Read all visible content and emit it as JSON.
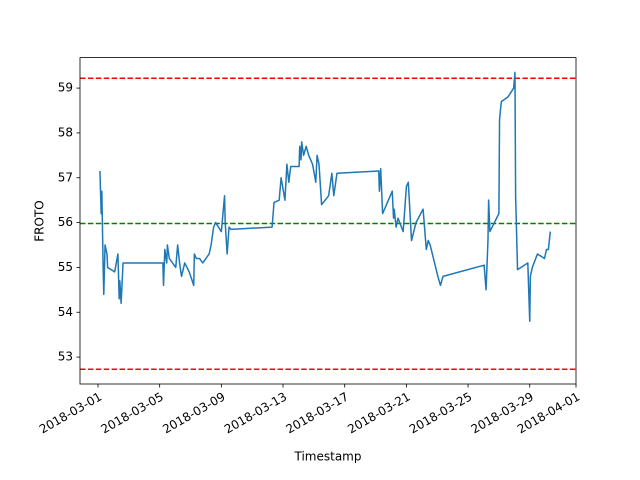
{
  "chart_data": {
    "type": "line",
    "x_label": "Timestamp",
    "y_label": "FROTO",
    "x": [
      "2018-03-01 03:00",
      "2018-03-01 05:00",
      "2018-03-01 06:00",
      "2018-03-01 08:00",
      "2018-03-01 09:00",
      "2018-03-01 11:00",
      "2018-03-01 14:00",
      "2018-03-01 15:00",
      "2018-03-02 02:00",
      "2018-03-02 07:00",
      "2018-03-02 09:00",
      "2018-03-02 10:00",
      "2018-03-02 12:00",
      "2018-03-02 15:00",
      "2018-03-05 05:00",
      "2018-03-05 06:00",
      "2018-03-05 08:00",
      "2018-03-05 11:00",
      "2018-03-05 12:00",
      "2018-03-05 15:00",
      "2018-03-06 01:00",
      "2018-03-06 04:00",
      "2018-03-06 07:00",
      "2018-03-06 10:00",
      "2018-03-06 15:00",
      "2018-03-06 22:00",
      "2018-03-07 05:00",
      "2018-03-07 06:00",
      "2018-03-07 09:00",
      "2018-03-07 14:00",
      "2018-03-07 19:00",
      "2018-03-08 05:00",
      "2018-03-08 08:00",
      "2018-03-08 12:00",
      "2018-03-08 15:00",
      "2018-03-09 00:00",
      "2018-03-09 05:00",
      "2018-03-09 06:00",
      "2018-03-09 09:00",
      "2018-03-09 12:00",
      "2018-03-09 15:00",
      "2018-03-12 07:00",
      "2018-03-12 10:00",
      "2018-03-12 18:00",
      "2018-03-12 21:00",
      "2018-03-13 03:00",
      "2018-03-13 06:00",
      "2018-03-13 09:00",
      "2018-03-13 12:00",
      "2018-03-14 01:00",
      "2018-03-14 02:00",
      "2018-03-14 04:00",
      "2018-03-14 05:00",
      "2018-03-14 08:00",
      "2018-03-14 12:00",
      "2018-03-14 16:00",
      "2018-03-14 22:00",
      "2018-03-15 03:00",
      "2018-03-15 05:00",
      "2018-03-15 08:00",
      "2018-03-15 12:00",
      "2018-03-15 23:00",
      "2018-03-16 04:00",
      "2018-03-16 07:00",
      "2018-03-16 12:00",
      "2018-03-19 05:00",
      "2018-03-19 06:00",
      "2018-03-19 08:00",
      "2018-03-19 11:00",
      "2018-03-19 20:00",
      "2018-03-20 02:00",
      "2018-03-20 04:00",
      "2018-03-20 05:00",
      "2018-03-20 08:00",
      "2018-03-20 11:00",
      "2018-03-20 19:00",
      "2018-03-21 00:00",
      "2018-03-21 03:00",
      "2018-03-21 08:00",
      "2018-03-21 15:00",
      "2018-03-22 02:00",
      "2018-03-22 07:00",
      "2018-03-22 10:00",
      "2018-03-22 13:00",
      "2018-03-23 01:00",
      "2018-03-23 05:00",
      "2018-03-23 09:00",
      "2018-03-26 01:00",
      "2018-03-26 04:00",
      "2018-03-26 07:00",
      "2018-03-26 08:00",
      "2018-03-26 10:00",
      "2018-03-27 00:00",
      "2018-03-27 01:00",
      "2018-03-27 03:00",
      "2018-03-27 04:00",
      "2018-03-27 14:00",
      "2018-03-27 23:00",
      "2018-03-28 01:00",
      "2018-03-28 02:00",
      "2018-03-28 05:00",
      "2018-03-28 21:00",
      "2018-03-29 00:00",
      "2018-03-29 01:00",
      "2018-03-29 04:00",
      "2018-03-29 12:00",
      "2018-03-29 23:00",
      "2018-03-30 02:00",
      "2018-03-30 05:00",
      "2018-03-30 08:00"
    ],
    "series": [
      {
        "name": "FROTO",
        "color": "#1f77b4",
        "values": [
          57.15,
          56.2,
          56.7,
          55.0,
          54.4,
          55.5,
          55.3,
          55.0,
          54.9,
          55.3,
          54.3,
          54.7,
          54.2,
          55.1,
          55.1,
          54.6,
          55.4,
          55.1,
          55.5,
          55.2,
          55.0,
          55.5,
          55.1,
          54.8,
          55.1,
          54.9,
          54.6,
          55.3,
          55.2,
          55.2,
          55.1,
          55.3,
          55.5,
          55.9,
          56.0,
          55.8,
          56.6,
          56.0,
          55.3,
          55.9,
          55.85,
          55.9,
          56.45,
          56.5,
          57.0,
          56.5,
          57.3,
          56.9,
          57.25,
          57.25,
          57.7,
          57.4,
          57.8,
          57.5,
          57.7,
          57.5,
          57.3,
          56.9,
          57.5,
          57.3,
          56.4,
          56.6,
          57.1,
          56.6,
          57.1,
          57.15,
          56.7,
          57.2,
          56.2,
          56.5,
          56.7,
          56.1,
          56.3,
          55.9,
          56.1,
          55.8,
          56.8,
          56.9,
          55.6,
          56.0,
          56.3,
          55.4,
          55.6,
          55.5,
          54.8,
          54.6,
          54.8,
          55.05,
          54.5,
          55.6,
          56.5,
          55.8,
          56.2,
          58.3,
          58.6,
          58.7,
          58.8,
          59.0,
          59.35,
          56.6,
          54.95,
          55.1,
          53.8,
          54.8,
          55.0,
          55.3,
          55.2,
          55.4,
          55.4,
          55.8
        ]
      }
    ],
    "hlines": [
      {
        "value": 59.22,
        "color": "#ff0000"
      },
      {
        "value": 52.73,
        "color": "#ff0000"
      },
      {
        "value": 55.98,
        "color": "#008000"
      }
    ],
    "xlim": [
      "2018-02-27 20:00",
      "2018-04-01 00:00"
    ],
    "xticks": [
      "2018-03-01",
      "2018-03-05",
      "2018-03-09",
      "2018-03-13",
      "2018-03-17",
      "2018-03-21",
      "2018-03-25",
      "2018-03-29",
      "2018-04-01"
    ],
    "ylim": [
      52.4,
      59.68
    ],
    "yticks": [
      53,
      54,
      55,
      56,
      57,
      58,
      59
    ]
  }
}
